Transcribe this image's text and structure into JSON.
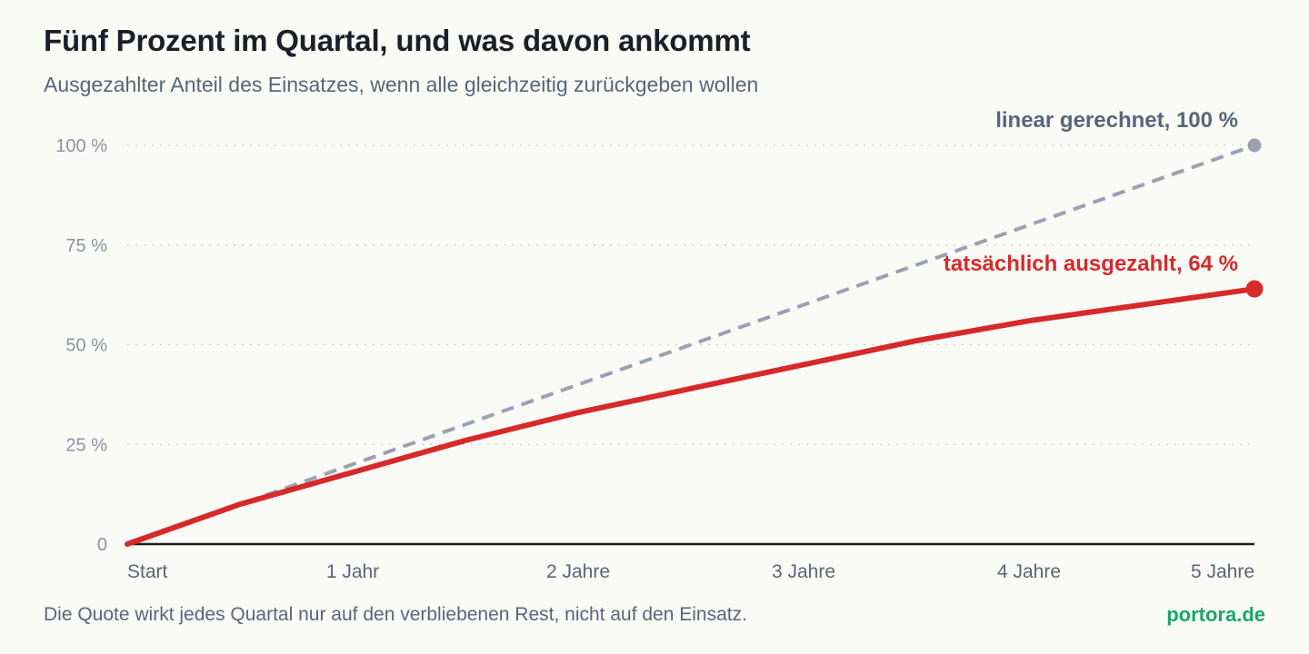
{
  "title": "Fünf Prozent im Quartal, und was davon ankommt",
  "subtitle": "Ausgezahlter Anteil des Einsatzes, wenn alle gleichzeitig zurückgeben wollen",
  "footnote": "Die Quote wirkt jedes Quartal nur auf den verbliebenen Rest, nicht auf den Einsatz.",
  "brand": "portora.de",
  "colors": {
    "actual": "#d62a2a",
    "linear": "#9aa2b0",
    "brand": "#1aa56b",
    "linear_label": "#5b6577"
  },
  "chart_data": {
    "type": "line",
    "ylim": [
      0,
      100
    ],
    "xlim": [
      0,
      5
    ],
    "y_ticks": [
      {
        "value": 0,
        "label": "0"
      },
      {
        "value": 25,
        "label": "25 %"
      },
      {
        "value": 50,
        "label": "50 %"
      },
      {
        "value": 75,
        "label": "75 %"
      },
      {
        "value": 100,
        "label": "100 %"
      }
    ],
    "x_ticks": [
      {
        "value": 0,
        "label": "Start"
      },
      {
        "value": 1,
        "label": "1 Jahr"
      },
      {
        "value": 2,
        "label": "2 Jahre"
      },
      {
        "value": 3,
        "label": "3 Jahre"
      },
      {
        "value": 4,
        "label": "4 Jahre"
      },
      {
        "value": 5,
        "label": "5 Jahre"
      }
    ],
    "grid": true,
    "series": [
      {
        "key": "linear",
        "label": "linear gerechnet, 100 %",
        "style": "dashed",
        "x": [
          0,
          0.5,
          5
        ],
        "y": [
          0,
          10,
          100
        ]
      },
      {
        "key": "actual",
        "label": "tatsächlich ausgezahlt, 64 %",
        "style": "solid",
        "x": [
          0,
          0.5,
          1,
          1.5,
          2,
          2.5,
          3,
          3.5,
          4,
          4.5,
          5
        ],
        "y": [
          0,
          10,
          18,
          26,
          33,
          39,
          45,
          51,
          56,
          60,
          64
        ]
      }
    ]
  }
}
